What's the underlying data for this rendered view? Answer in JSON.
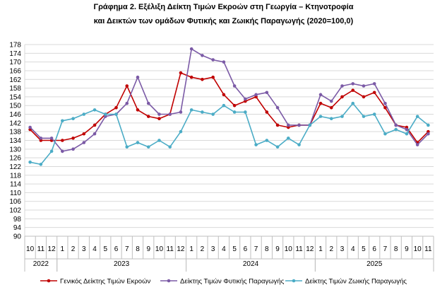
{
  "chart_data": {
    "type": "line",
    "title": "Γράφημα 2. Εξέλιξη Δείκτη Τιμών Εκροών στη Γεωργία – Κτηνοτροφία",
    "subtitle": "και Δεικτών των ομάδων Φυτικής και Ζωικής Παραγωγής (2020=100,0)",
    "ylim": [
      90,
      178
    ],
    "ytick_step": 4,
    "yticks": [
      "90",
      "94",
      "98",
      "102",
      "106",
      "110",
      "114",
      "118",
      "122",
      "126",
      "130",
      "134",
      "138",
      "142",
      "146",
      "150",
      "154",
      "158",
      "162",
      "166",
      "170",
      "174",
      "178"
    ],
    "grid": true,
    "legend_position": "bottom",
    "month_labels": [
      "10",
      "11",
      "12",
      "1",
      "2",
      "3",
      "4",
      "5",
      "6",
      "7",
      "8",
      "9",
      "10",
      "11",
      "12",
      "1",
      "2",
      "3",
      "4",
      "5",
      "6",
      "7",
      "8",
      "9",
      "10",
      "11",
      "12",
      "1",
      "2",
      "3",
      "4",
      "5",
      "6",
      "7",
      "8",
      "9",
      "10",
      "11"
    ],
    "year_groups": [
      {
        "label": "2022",
        "start": 0,
        "end": 2
      },
      {
        "label": "2023",
        "start": 3,
        "end": 14
      },
      {
        "label": "2024",
        "start": 15,
        "end": 26
      },
      {
        "label": "2025",
        "start": 27,
        "end": 37
      }
    ],
    "series": [
      {
        "name": "Γενικός Δείκτης Τιμών Εκροών",
        "color": "#c00000",
        "values": [
          139,
          134,
          134,
          134,
          135,
          137,
          141,
          146,
          149,
          159,
          148,
          145,
          144,
          146,
          165,
          163,
          162,
          163,
          155,
          150,
          152,
          154,
          147,
          141,
          140,
          141,
          141,
          151,
          149,
          154,
          157,
          154,
          156,
          149,
          141,
          140,
          133,
          138
        ]
      },
      {
        "name": "Δείκτης Τιμών Φυτικής Παραγωγής",
        "color": "#7b5aa6",
        "values": [
          140,
          135,
          135,
          129,
          130,
          133,
          137,
          145,
          146,
          151,
          163,
          151,
          146,
          146,
          147,
          176,
          173,
          171,
          170,
          159,
          153,
          155,
          156,
          149,
          141,
          141,
          141,
          155,
          152,
          159,
          160,
          159,
          160,
          151,
          141,
          139,
          132,
          137
        ]
      },
      {
        "name": "Δείκτης Τιμών Ζωικής Παραγωγής",
        "color": "#4bacc6",
        "values": [
          124,
          123,
          129,
          143,
          144,
          146,
          148,
          146,
          146,
          131,
          133,
          131,
          134,
          131,
          138,
          148,
          147,
          146,
          150,
          147,
          147,
          132,
          134,
          131,
          135,
          132,
          141,
          145,
          144,
          145,
          151,
          145,
          146,
          137,
          139,
          137,
          145,
          141
        ]
      }
    ]
  }
}
